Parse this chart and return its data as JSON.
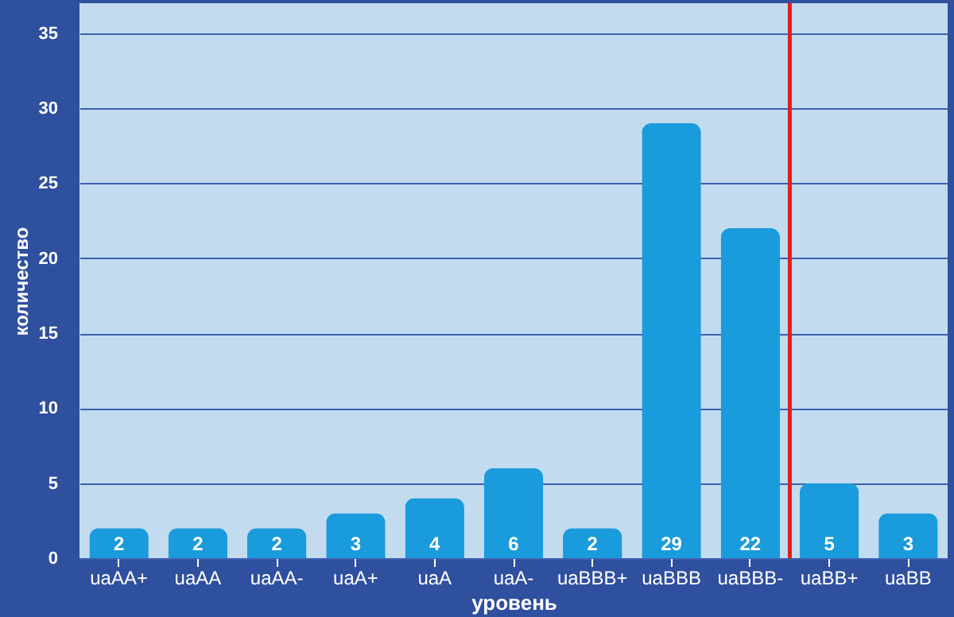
{
  "chart_data": {
    "type": "bar",
    "xlabel": "уровень",
    "ylabel": "количество",
    "categories": [
      "uaAA+",
      "uaAA",
      "uaAA-",
      "uaA+",
      "uaA",
      "uaA-",
      "uaBBB+",
      "uaBBB",
      "uaBBB-",
      "uaBB+",
      "uaBB"
    ],
    "values": [
      2,
      2,
      2,
      3,
      4,
      6,
      2,
      29,
      22,
      5,
      3
    ],
    "color": "#1a9bdb",
    "ylim": [
      0,
      37
    ],
    "yticks": [
      0,
      5,
      10,
      15,
      20,
      25,
      30,
      35
    ],
    "grid": "y",
    "data_labels": true,
    "ref_lines": [
      {
        "axis": "x",
        "value": "uaBB+",
        "color": "#e0201c"
      }
    ]
  }
}
